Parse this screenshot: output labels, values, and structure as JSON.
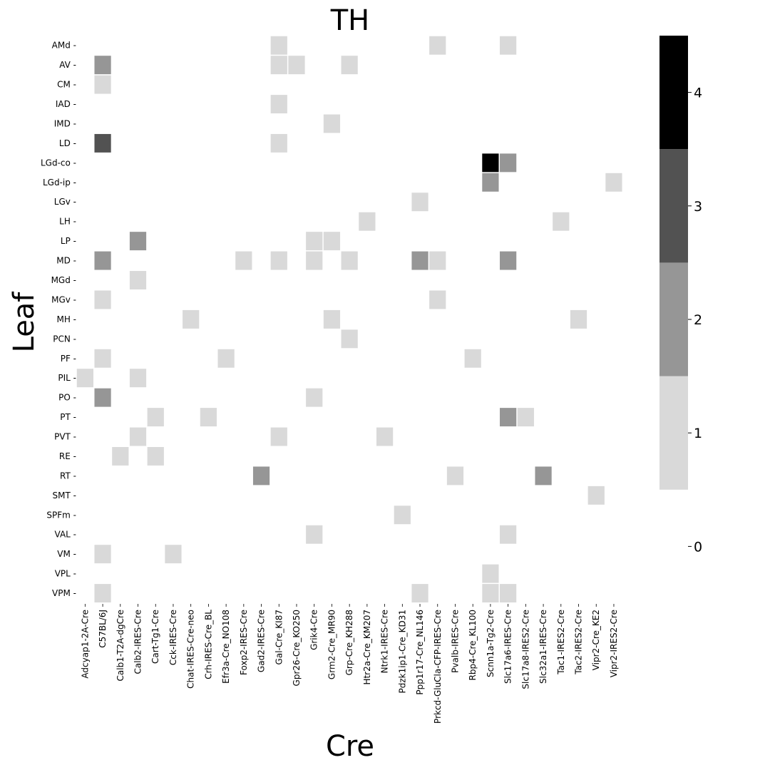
{
  "chart_data": {
    "type": "heatmap",
    "title": "TH",
    "xlabel": "Cre",
    "ylabel": "Leaf",
    "x_categories": [
      "Adcyap1-2A-Cre",
      "C57BL/6J",
      "Calb1-T2A-dgCre",
      "Calb2-IRES-Cre",
      "Cart-Tg1-Cre",
      "Cck-IRES-Cre",
      "Chat-IRES-Cre-neo",
      "Crh-IRES-Cre_BL",
      "Efr3a-Cre_NO108",
      "Foxp2-IRES-Cre",
      "Gad2-IRES-Cre",
      "Gal-Cre_KI87",
      "Gpr26-Cre_KO250",
      "Grik4-Cre",
      "Grm2-Cre_MR90",
      "Grp-Cre_KH288",
      "Htr2a-Cre_KM207",
      "Ntrk1-IRES-Cre",
      "Pdzk1ip1-Cre_KD31",
      "Ppp1r17-Cre_NL146",
      "Prkcd-GluCla-CFP-IRES-Cre",
      "Pvalb-IRES-Cre",
      "Rbp4-Cre_KL100",
      "Scnn1a-Tg2-Cre",
      "Slc17a6-IRES-Cre",
      "Slc17a8-IRES2-Cre",
      "Slc32a1-IRES-Cre",
      "Tac1-IRES2-Cre",
      "Tac2-IRES2-Cre",
      "Vipr2-Cre_KE2",
      "Vipr2-IRES2-Cre"
    ],
    "y_categories": [
      "AMd",
      "AV",
      "CM",
      "IAD",
      "IMD",
      "LD",
      "LGd-co",
      "LGd-ip",
      "LGv",
      "LH",
      "LP",
      "MD",
      "MGd",
      "MGv",
      "MH",
      "PCN",
      "PF",
      "PIL",
      "PO",
      "PT",
      "PVT",
      "RE",
      "RT",
      "SMT",
      "SPFm",
      "VAL",
      "VM",
      "VPL",
      "VPM"
    ],
    "cells": [
      {
        "y": "AMd",
        "x": "Gal-Cre_KI87",
        "v": 1
      },
      {
        "y": "AMd",
        "x": "Prkcd-GluCla-CFP-IRES-Cre",
        "v": 1
      },
      {
        "y": "AMd",
        "x": "Slc17a6-IRES-Cre",
        "v": 1
      },
      {
        "y": "AV",
        "x": "C57BL/6J",
        "v": 2
      },
      {
        "y": "AV",
        "x": "Gal-Cre_KI87",
        "v": 1
      },
      {
        "y": "AV",
        "x": "Gpr26-Cre_KO250",
        "v": 1
      },
      {
        "y": "AV",
        "x": "Grp-Cre_KH288",
        "v": 1
      },
      {
        "y": "CM",
        "x": "C57BL/6J",
        "v": 1
      },
      {
        "y": "IAD",
        "x": "Gal-Cre_KI87",
        "v": 1
      },
      {
        "y": "IMD",
        "x": "Grm2-Cre_MR90",
        "v": 1
      },
      {
        "y": "LD",
        "x": "C57BL/6J",
        "v": 3
      },
      {
        "y": "LD",
        "x": "Gal-Cre_KI87",
        "v": 1
      },
      {
        "y": "LGd-co",
        "x": "Scnn1a-Tg2-Cre",
        "v": 4
      },
      {
        "y": "LGd-co",
        "x": "Slc17a6-IRES-Cre",
        "v": 2
      },
      {
        "y": "LGd-ip",
        "x": "Scnn1a-Tg2-Cre",
        "v": 2
      },
      {
        "y": "LGd-ip",
        "x": "Vipr2-IRES2-Cre",
        "v": 1
      },
      {
        "y": "LGv",
        "x": "Ppp1r17-Cre_NL146",
        "v": 1
      },
      {
        "y": "LH",
        "x": "Htr2a-Cre_KM207",
        "v": 1
      },
      {
        "y": "LH",
        "x": "Tac1-IRES2-Cre",
        "v": 1
      },
      {
        "y": "LP",
        "x": "Calb2-IRES-Cre",
        "v": 2
      },
      {
        "y": "LP",
        "x": "Grik4-Cre",
        "v": 1
      },
      {
        "y": "LP",
        "x": "Grm2-Cre_MR90",
        "v": 1
      },
      {
        "y": "MD",
        "x": "C57BL/6J",
        "v": 2
      },
      {
        "y": "MD",
        "x": "Foxp2-IRES-Cre",
        "v": 1
      },
      {
        "y": "MD",
        "x": "Gal-Cre_KI87",
        "v": 1
      },
      {
        "y": "MD",
        "x": "Grik4-Cre",
        "v": 1
      },
      {
        "y": "MD",
        "x": "Grp-Cre_KH288",
        "v": 1
      },
      {
        "y": "MD",
        "x": "Ppp1r17-Cre_NL146",
        "v": 2
      },
      {
        "y": "MD",
        "x": "Prkcd-GluCla-CFP-IRES-Cre",
        "v": 1
      },
      {
        "y": "MD",
        "x": "Slc17a6-IRES-Cre",
        "v": 2
      },
      {
        "y": "MGd",
        "x": "Calb2-IRES-Cre",
        "v": 1
      },
      {
        "y": "MGv",
        "x": "C57BL/6J",
        "v": 1
      },
      {
        "y": "MGv",
        "x": "Prkcd-GluCla-CFP-IRES-Cre",
        "v": 1
      },
      {
        "y": "MH",
        "x": "Chat-IRES-Cre-neo",
        "v": 1
      },
      {
        "y": "MH",
        "x": "Grm2-Cre_MR90",
        "v": 1
      },
      {
        "y": "MH",
        "x": "Tac2-IRES2-Cre",
        "v": 1
      },
      {
        "y": "PCN",
        "x": "Grp-Cre_KH288",
        "v": 1
      },
      {
        "y": "PF",
        "x": "C57BL/6J",
        "v": 1
      },
      {
        "y": "PF",
        "x": "Efr3a-Cre_NO108",
        "v": 1
      },
      {
        "y": "PF",
        "x": "Rbp4-Cre_KL100",
        "v": 1
      },
      {
        "y": "PIL",
        "x": "Adcyap1-2A-Cre",
        "v": 1
      },
      {
        "y": "PIL",
        "x": "Calb2-IRES-Cre",
        "v": 1
      },
      {
        "y": "PO",
        "x": "C57BL/6J",
        "v": 2
      },
      {
        "y": "PO",
        "x": "Grik4-Cre",
        "v": 1
      },
      {
        "y": "PT",
        "x": "Cart-Tg1-Cre",
        "v": 1
      },
      {
        "y": "PT",
        "x": "Crh-IRES-Cre_BL",
        "v": 1
      },
      {
        "y": "PT",
        "x": "Slc17a6-IRES-Cre",
        "v": 2
      },
      {
        "y": "PT",
        "x": "Slc17a8-IRES2-Cre",
        "v": 1
      },
      {
        "y": "PVT",
        "x": "Calb2-IRES-Cre",
        "v": 1
      },
      {
        "y": "PVT",
        "x": "Gal-Cre_KI87",
        "v": 1
      },
      {
        "y": "PVT",
        "x": "Ntrk1-IRES-Cre",
        "v": 1
      },
      {
        "y": "RE",
        "x": "Calb1-T2A-dgCre",
        "v": 1
      },
      {
        "y": "RE",
        "x": "Cart-Tg1-Cre",
        "v": 1
      },
      {
        "y": "RT",
        "x": "Gad2-IRES-Cre",
        "v": 2
      },
      {
        "y": "RT",
        "x": "Pvalb-IRES-Cre",
        "v": 1
      },
      {
        "y": "RT",
        "x": "Slc32a1-IRES-Cre",
        "v": 2
      },
      {
        "y": "SMT",
        "x": "Vipr2-Cre_KE2",
        "v": 1
      },
      {
        "y": "SPFm",
        "x": "Pdzk1ip1-Cre_KD31",
        "v": 1
      },
      {
        "y": "VAL",
        "x": "Grik4-Cre",
        "v": 1
      },
      {
        "y": "VAL",
        "x": "Slc17a6-IRES-Cre",
        "v": 1
      },
      {
        "y": "VM",
        "x": "C57BL/6J",
        "v": 1
      },
      {
        "y": "VM",
        "x": "Cck-IRES-Cre",
        "v": 1
      },
      {
        "y": "VPL",
        "x": "Scnn1a-Tg2-Cre",
        "v": 1
      },
      {
        "y": "VPM",
        "x": "C57BL/6J",
        "v": 1
      },
      {
        "y": "VPM",
        "x": "Ppp1r17-Cre_NL146",
        "v": 1
      },
      {
        "y": "VPM",
        "x": "Scnn1a-Tg2-Cre",
        "v": 1
      },
      {
        "y": "VPM",
        "x": "Slc17a6-IRES-Cre",
        "v": 1
      }
    ],
    "colorbar": {
      "vmin": -0.5,
      "vmax": 4.5,
      "ticks": [
        "0",
        "1",
        "2",
        "3",
        "4"
      ],
      "levels": [
        {
          "value": 0,
          "color": "#ffffff"
        },
        {
          "value": 1,
          "color": "#d9d9d9"
        },
        {
          "value": 2,
          "color": "#969696"
        },
        {
          "value": 3,
          "color": "#525252"
        },
        {
          "value": 4,
          "color": "#000000"
        }
      ]
    },
    "grid": false,
    "legend": "colorbar-right"
  }
}
